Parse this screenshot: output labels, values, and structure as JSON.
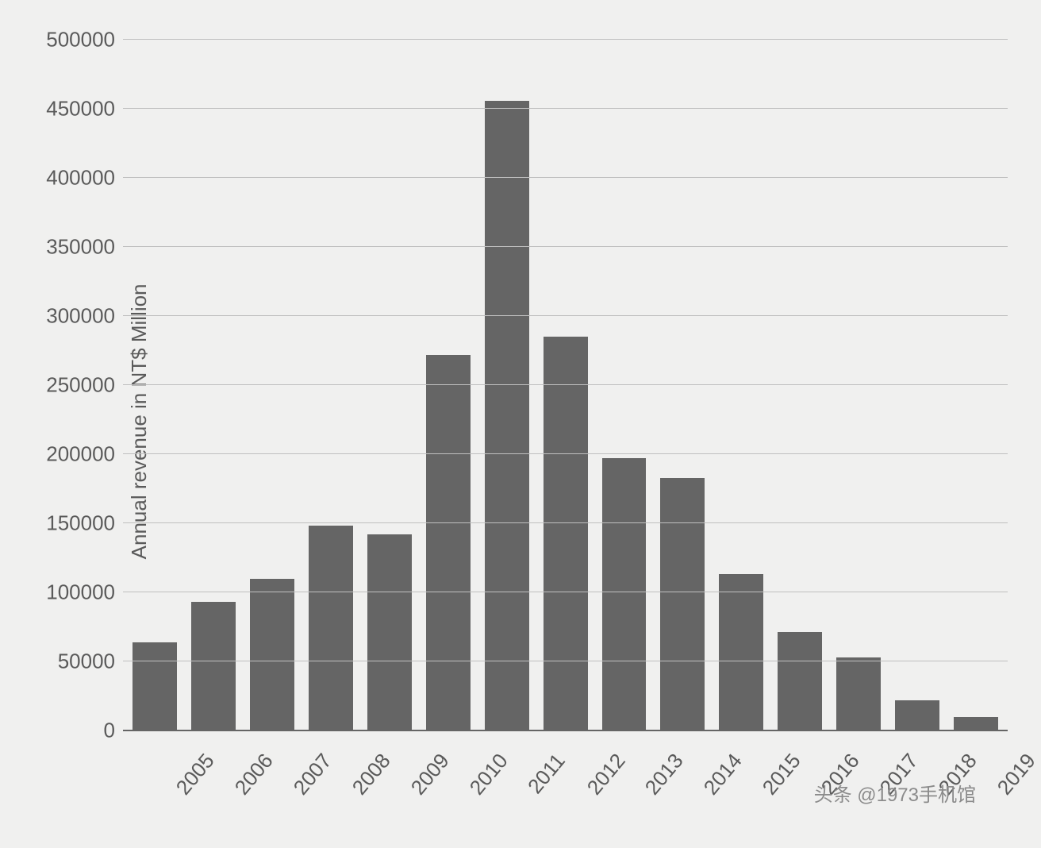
{
  "chart": {
    "type": "bar",
    "ylabel": "Annual revenue in NT$ Million",
    "label_fontsize": 26,
    "tick_fontsize": 26,
    "background_color": "#f0f0ef",
    "grid_color": "#bfbfbf",
    "baseline_color": "#656565",
    "bar_color": "#656565",
    "text_color": "#5a5a5a",
    "bar_width": 0.72,
    "ylim": [
      0,
      500000
    ],
    "yticks": [
      0,
      50000,
      100000,
      150000,
      200000,
      250000,
      300000,
      350000,
      400000,
      450000,
      500000
    ],
    "ytick_labels": [
      "0",
      "50000",
      "100000",
      "150000",
      "200000",
      "250000",
      "300000",
      "350000",
      "400000",
      "450000",
      "500000"
    ],
    "categories": [
      "2005",
      "2006",
      "2007",
      "2008",
      "2009",
      "2010",
      "2011",
      "2012",
      "2013",
      "2014",
      "2015",
      "2016",
      "2017",
      "2018",
      "2019"
    ],
    "values": [
      64000,
      93000,
      110000,
      148000,
      142000,
      272000,
      456000,
      285000,
      197000,
      183000,
      113000,
      71000,
      53000,
      22000,
      10000
    ],
    "xtick_rotation_deg": -50
  },
  "watermark": "头条 @1973手机馆"
}
